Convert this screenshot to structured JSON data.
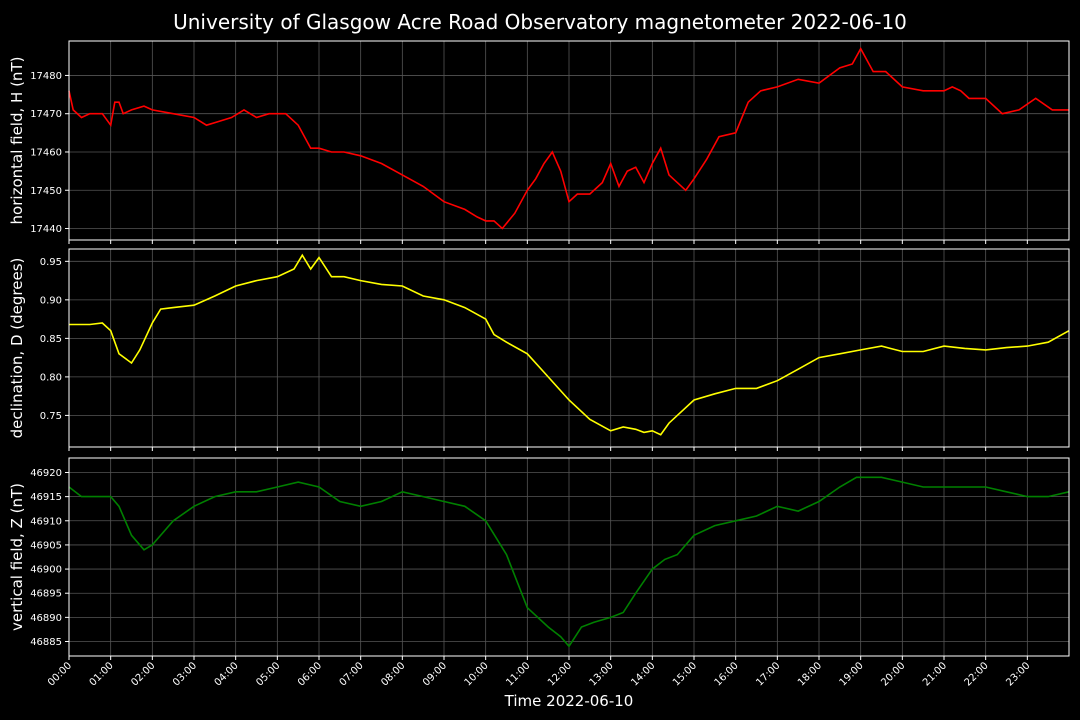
{
  "title": "University of Glasgow Acre Road Observatory magnetometer 2022-06-10",
  "xlabel": "Time 2022-06-10",
  "x_ticks": [
    "00:00",
    "01:00",
    "02:00",
    "03:00",
    "04:00",
    "05:00",
    "06:00",
    "07:00",
    "08:00",
    "09:00",
    "10:00",
    "11:00",
    "12:00",
    "13:00",
    "14:00",
    "15:00",
    "16:00",
    "17:00",
    "18:00",
    "19:00",
    "20:00",
    "21:00",
    "22:00",
    "23:00"
  ],
  "chart_data": [
    {
      "type": "line",
      "ylabel": "horizontal field, H (nT)",
      "color": "#ff0000",
      "xlim": [
        0,
        24
      ],
      "ylim": [
        17437,
        17489
      ],
      "y_ticks": [
        17440,
        17450,
        17460,
        17470,
        17480
      ],
      "x_hours": [
        0,
        0.1,
        0.3,
        0.5,
        0.8,
        1.0,
        1.1,
        1.2,
        1.3,
        1.5,
        1.8,
        2.0,
        2.5,
        3.0,
        3.3,
        3.6,
        3.9,
        4.2,
        4.5,
        4.8,
        5.2,
        5.5,
        5.8,
        6.0,
        6.3,
        6.6,
        7.0,
        7.5,
        8.0,
        8.5,
        9.0,
        9.5,
        9.8,
        10.0,
        10.2,
        10.4,
        10.7,
        11.0,
        11.2,
        11.4,
        11.6,
        11.8,
        12.0,
        12.2,
        12.5,
        12.8,
        13.0,
        13.2,
        13.4,
        13.6,
        13.8,
        14.0,
        14.2,
        14.4,
        14.6,
        14.8,
        15.0,
        15.3,
        15.6,
        16.0,
        16.3,
        16.6,
        17.0,
        17.5,
        18.0,
        18.5,
        18.8,
        19.0,
        19.3,
        19.6,
        20.0,
        20.5,
        21.0,
        21.2,
        21.4,
        21.6,
        22.0,
        22.4,
        22.8,
        23.2,
        23.6,
        24.0
      ],
      "values": [
        17476,
        17471,
        17469,
        17470,
        17470,
        17467,
        17473,
        17473,
        17470,
        17471,
        17472,
        17471,
        17470,
        17469,
        17467,
        17468,
        17469,
        17471,
        17469,
        17470,
        17470,
        17467,
        17461,
        17461,
        17460,
        17460,
        17459,
        17457,
        17454,
        17451,
        17447,
        17445,
        17443,
        17442,
        17442,
        17440,
        17444,
        17450,
        17453,
        17457,
        17460,
        17455,
        17447,
        17449,
        17449,
        17452,
        17457,
        17451,
        17455,
        17456,
        17452,
        17457,
        17461,
        17454,
        17452,
        17450,
        17453,
        17458,
        17464,
        17465,
        17473,
        17476,
        17477,
        17479,
        17478,
        17482,
        17483,
        17487,
        17481,
        17481,
        17477,
        17476,
        17476,
        17477,
        17476,
        17474,
        17474,
        17470,
        17471,
        17474,
        17471,
        17471
      ]
    },
    {
      "type": "line",
      "ylabel": "declination, D (degrees)",
      "color": "#ffff00",
      "xlim": [
        0,
        24
      ],
      "ylim": [
        0.709,
        0.966
      ],
      "y_ticks": [
        0.75,
        0.8,
        0.85,
        0.9,
        0.95
      ],
      "y_tick_labels": [
        "0.75",
        "0.80",
        "0.85",
        "0.90",
        "0.95"
      ],
      "x_hours": [
        0,
        0.5,
        0.8,
        1.0,
        1.2,
        1.5,
        1.7,
        2.0,
        2.2,
        2.5,
        3.0,
        3.5,
        4.0,
        4.5,
        5.0,
        5.4,
        5.6,
        5.8,
        6.0,
        6.3,
        6.6,
        7.0,
        7.5,
        8.0,
        8.5,
        9.0,
        9.5,
        10.0,
        10.2,
        10.5,
        11.0,
        11.5,
        12.0,
        12.5,
        13.0,
        13.3,
        13.6,
        13.8,
        14.0,
        14.2,
        14.4,
        14.6,
        15.0,
        15.5,
        16.0,
        16.5,
        17.0,
        17.5,
        18.0,
        18.5,
        19.0,
        19.5,
        20.0,
        20.5,
        21.0,
        21.5,
        22.0,
        22.5,
        23.0,
        23.5,
        24.0
      ],
      "values": [
        0.868,
        0.868,
        0.87,
        0.86,
        0.83,
        0.818,
        0.835,
        0.87,
        0.888,
        0.89,
        0.893,
        0.905,
        0.918,
        0.925,
        0.93,
        0.94,
        0.958,
        0.94,
        0.955,
        0.93,
        0.93,
        0.925,
        0.92,
        0.918,
        0.905,
        0.9,
        0.89,
        0.875,
        0.855,
        0.845,
        0.83,
        0.8,
        0.77,
        0.745,
        0.73,
        0.735,
        0.732,
        0.728,
        0.73,
        0.725,
        0.74,
        0.75,
        0.77,
        0.778,
        0.785,
        0.785,
        0.795,
        0.81,
        0.825,
        0.83,
        0.835,
        0.84,
        0.833,
        0.833,
        0.84,
        0.837,
        0.835,
        0.838,
        0.84,
        0.845,
        0.86
      ]
    },
    {
      "type": "line",
      "ylabel": "vertical field, Z (nT)",
      "color": "#008000",
      "xlim": [
        0,
        24
      ],
      "ylim": [
        46882,
        46923
      ],
      "y_ticks": [
        46885,
        46890,
        46895,
        46900,
        46905,
        46910,
        46915,
        46920
      ],
      "x_hours": [
        0,
        0.3,
        0.6,
        1.0,
        1.2,
        1.5,
        1.8,
        2.0,
        2.5,
        3.0,
        3.5,
        4.0,
        4.5,
        5.0,
        5.5,
        6.0,
        6.5,
        7.0,
        7.5,
        8.0,
        8.5,
        9.0,
        9.5,
        10.0,
        10.5,
        11.0,
        11.5,
        11.8,
        12.0,
        12.3,
        12.6,
        13.0,
        13.3,
        13.6,
        14.0,
        14.3,
        14.6,
        15.0,
        15.5,
        16.0,
        16.5,
        17.0,
        17.5,
        18.0,
        18.5,
        18.9,
        19.2,
        19.5,
        20.0,
        20.5,
        21.0,
        21.5,
        22.0,
        22.5,
        23.0,
        23.5,
        24.0
      ],
      "values": [
        46917,
        46915,
        46915,
        46915,
        46913,
        46907,
        46904,
        46905,
        46910,
        46913,
        46915,
        46916,
        46916,
        46917,
        46918,
        46917,
        46914,
        46913,
        46914,
        46916,
        46915,
        46914,
        46913,
        46910,
        46903,
        46892,
        46888,
        46886,
        46884,
        46888,
        46889,
        46890,
        46891,
        46895,
        46900,
        46902,
        46903,
        46907,
        46909,
        46910,
        46911,
        46913,
        46912,
        46914,
        46917,
        46919,
        46919,
        46919,
        46918,
        46917,
        46917,
        46917,
        46917,
        46916,
        46915,
        46915,
        46916
      ]
    }
  ]
}
